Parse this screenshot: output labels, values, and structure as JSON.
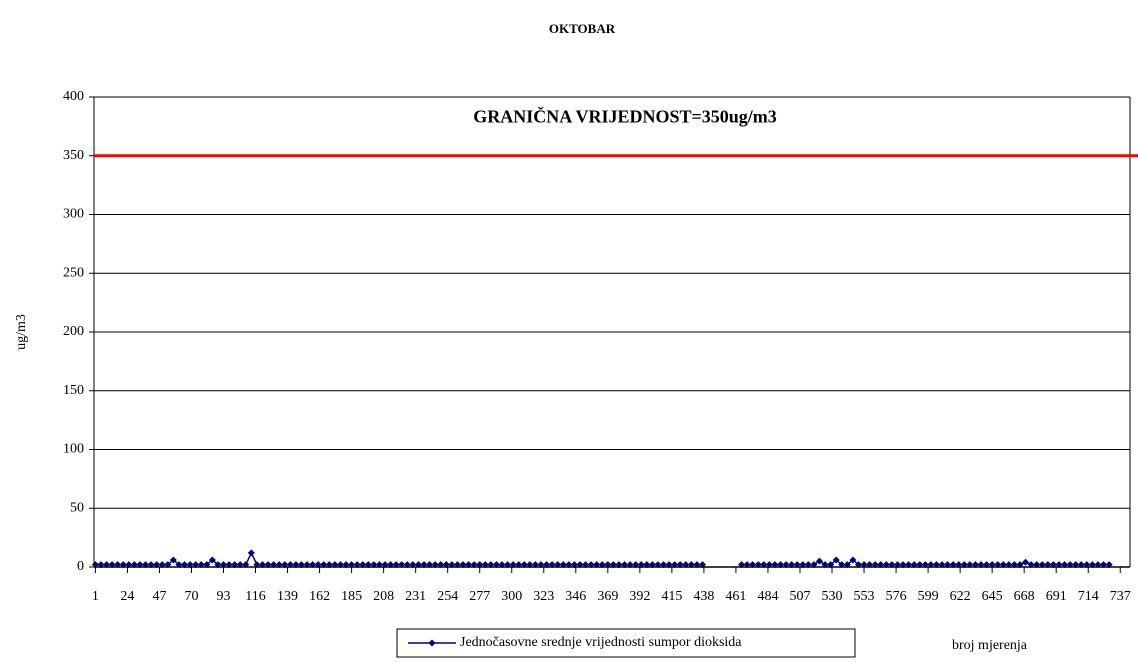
{
  "chart_data": {
    "type": "line",
    "title": "OKTOBAR",
    "ylabel": "ug/m3",
    "xlabel": "broj mjerenja",
    "xlim": [
      0,
      744
    ],
    "xticks": [
      1,
      24,
      47,
      70,
      93,
      116,
      139,
      162,
      185,
      208,
      231,
      254,
      277,
      300,
      323,
      346,
      369,
      392,
      415,
      438,
      461,
      484,
      507,
      530,
      553,
      576,
      599,
      622,
      645,
      668,
      691,
      714,
      737
    ],
    "ylim": [
      0,
      400
    ],
    "yticks": [
      0,
      50,
      100,
      150,
      200,
      250,
      300,
      350,
      400
    ],
    "grid": true,
    "reference_line": {
      "value": 350,
      "label": "GRANIČNA VRIJEDNOST=350ug/m3",
      "color": "#ff0000"
    },
    "legend": "bottom",
    "series": [
      {
        "name": "Jednočasovne srednje vrijednosti sumpor dioksida",
        "color": "#000080",
        "x": [
          1,
          5,
          9,
          13,
          17,
          21,
          25,
          29,
          33,
          37,
          41,
          45,
          49,
          53,
          57,
          61,
          65,
          69,
          73,
          77,
          81,
          85,
          89,
          93,
          97,
          101,
          105,
          109,
          113,
          117,
          121,
          125,
          129,
          133,
          137,
          141,
          145,
          149,
          153,
          157,
          161,
          165,
          169,
          173,
          177,
          181,
          185,
          189,
          193,
          197,
          201,
          205,
          209,
          213,
          217,
          221,
          225,
          229,
          233,
          237,
          241,
          245,
          249,
          253,
          257,
          261,
          265,
          269,
          273,
          277,
          281,
          285,
          289,
          293,
          297,
          301,
          305,
          309,
          313,
          317,
          321,
          325,
          329,
          333,
          337,
          341,
          345,
          349,
          353,
          357,
          361,
          365,
          369,
          373,
          377,
          381,
          385,
          389,
          393,
          397,
          401,
          405,
          409,
          413,
          417,
          421,
          425,
          429,
          433,
          437,
          441,
          445,
          449,
          453,
          457,
          461,
          465,
          469,
          473,
          477,
          481,
          485,
          489,
          493,
          497,
          501,
          505,
          509,
          513,
          517,
          521,
          525,
          529,
          533,
          537,
          541,
          545,
          549,
          553,
          557,
          561,
          565,
          569,
          573,
          577,
          581,
          585,
          589,
          593,
          597,
          601,
          605,
          609,
          613,
          617,
          621,
          625,
          629,
          633,
          637,
          641,
          645,
          649,
          653,
          657,
          661,
          665,
          669,
          673,
          677,
          681,
          685,
          689,
          693,
          697,
          701,
          705,
          709,
          713,
          717,
          721,
          725,
          729,
          733,
          737,
          741
        ],
        "values": [
          2,
          2,
          2,
          2,
          2,
          2,
          2,
          2,
          2,
          2,
          2,
          2,
          2,
          2,
          6,
          2,
          2,
          2,
          2,
          2,
          2,
          6,
          2,
          2,
          2,
          2,
          2,
          2,
          12,
          2,
          2,
          2,
          2,
          2,
          2,
          2,
          2,
          2,
          2,
          2,
          2,
          2,
          2,
          2,
          2,
          2,
          2,
          2,
          2,
          2,
          2,
          2,
          2,
          2,
          2,
          2,
          2,
          2,
          2,
          2,
          2,
          2,
          2,
          2,
          2,
          2,
          2,
          2,
          2,
          2,
          2,
          2,
          2,
          2,
          2,
          2,
          2,
          2,
          2,
          2,
          2,
          2,
          2,
          2,
          2,
          2,
          2,
          2,
          2,
          2,
          2,
          2,
          2,
          2,
          2,
          2,
          2,
          2,
          2,
          2,
          2,
          2,
          2,
          2,
          2,
          2,
          2,
          2,
          2,
          2,
          null,
          null,
          null,
          null,
          null,
          null,
          2,
          2,
          2,
          2,
          2,
          2,
          2,
          2,
          2,
          2,
          2,
          2,
          2,
          2,
          5,
          2,
          2,
          6,
          2,
          2,
          6,
          2,
          2,
          2,
          2,
          2,
          2,
          2,
          2,
          2,
          2,
          2,
          2,
          2,
          2,
          2,
          2,
          2,
          2,
          2,
          2,
          2,
          2,
          2,
          2,
          2,
          2,
          2,
          2,
          2,
          2,
          4,
          2,
          2,
          2,
          2,
          2,
          2,
          2,
          2,
          2,
          2,
          2,
          2,
          2,
          2,
          2,
          null,
          null,
          null
        ]
      }
    ]
  }
}
